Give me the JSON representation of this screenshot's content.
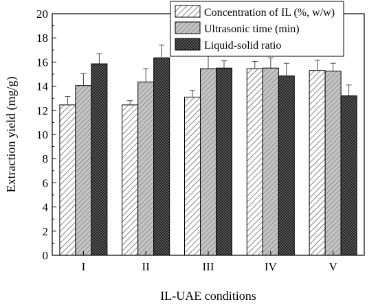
{
  "chart_data": {
    "type": "bar",
    "title": "",
    "xlabel": "IL-UAE conditions",
    "ylabel": "Extraction yield (mg/g)",
    "ylim": [
      0,
      20
    ],
    "yticks": [
      0,
      2,
      4,
      6,
      8,
      10,
      12,
      14,
      16,
      18,
      20
    ],
    "categories": [
      "I",
      "II",
      "III",
      "IV",
      "V"
    ],
    "legend_position": "top-right",
    "grid": false,
    "series": [
      {
        "name": "Concentration of IL (%, w/w)",
        "pattern": "diagonal-hatch",
        "values": [
          12.45,
          12.45,
          13.1,
          15.45,
          15.3
        ],
        "errors": [
          0.7,
          0.35,
          0.55,
          0.6,
          0.85
        ]
      },
      {
        "name": "Ultrasonic time (min)",
        "pattern": "gray-hatch",
        "values": [
          14.05,
          14.35,
          15.45,
          15.5,
          15.25
        ],
        "errors": [
          1.0,
          1.1,
          1.1,
          0.85,
          0.65
        ]
      },
      {
        "name": "Liquid-solid ratio",
        "pattern": "dark-crosshatch",
        "values": [
          15.85,
          16.35,
          15.5,
          14.85,
          13.2
        ],
        "errors": [
          0.85,
          1.05,
          0.6,
          1.05,
          0.9
        ]
      }
    ]
  }
}
